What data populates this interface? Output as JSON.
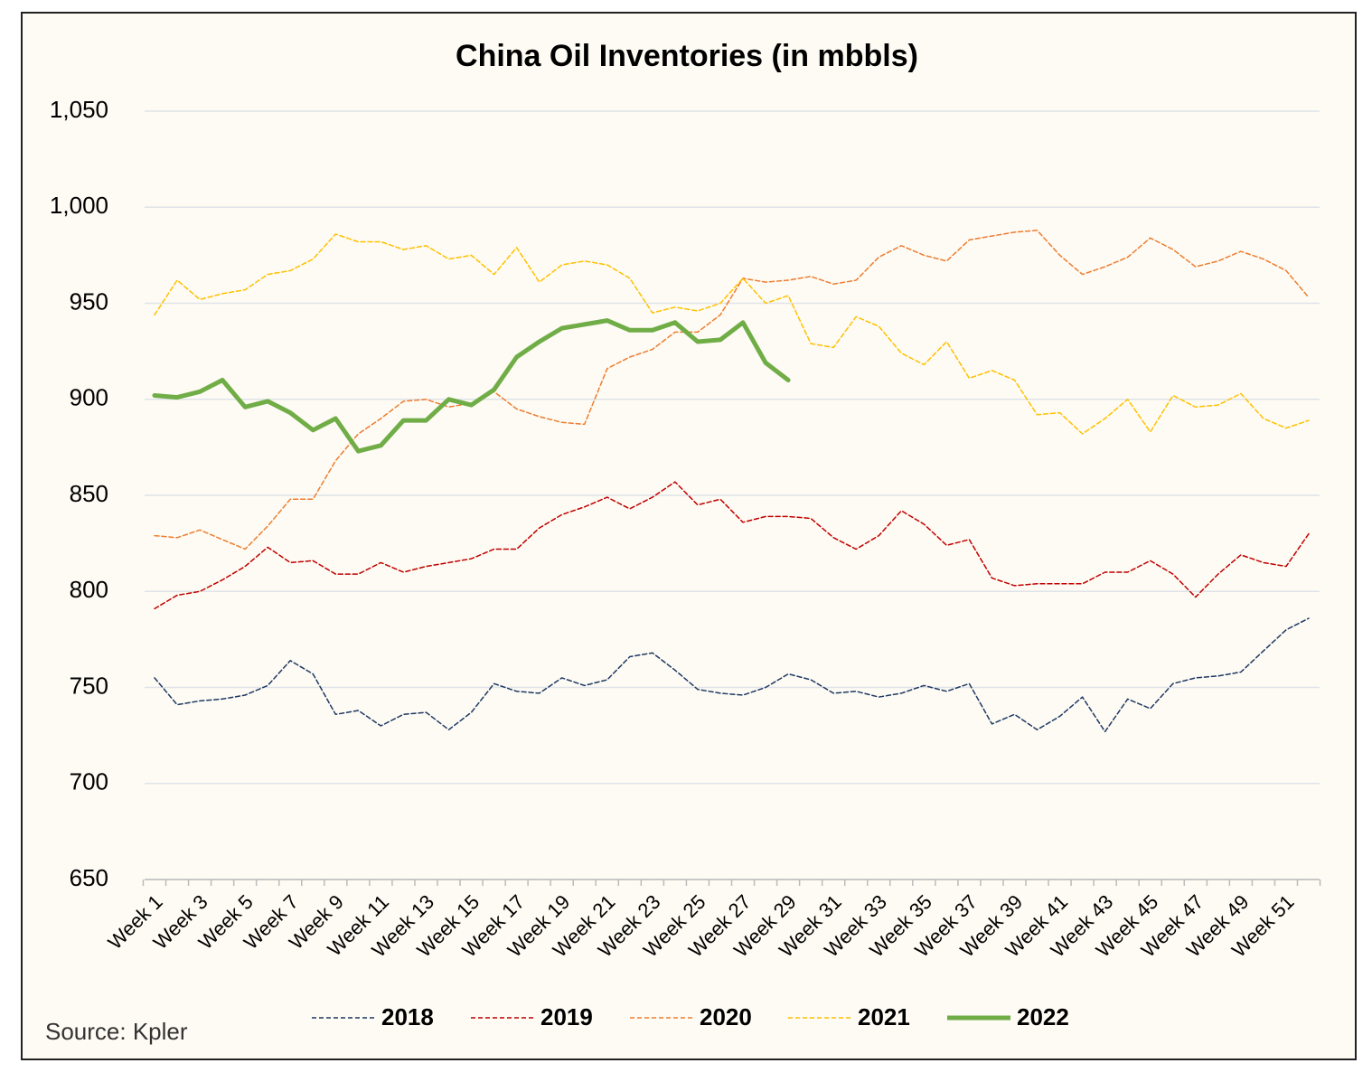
{
  "chart_data": {
    "type": "line",
    "title": "China Oil Inventories (in mbbls)",
    "source": "Source: Kpler",
    "categories": [
      "Week 1",
      null,
      "Week 3",
      null,
      "Week 5",
      null,
      "Week 7",
      null,
      "Week 9",
      null,
      "Week 11",
      null,
      "Week 13",
      null,
      "Week 15",
      null,
      "Week 17",
      null,
      "Week 19",
      null,
      "Week 21",
      null,
      "Week 23",
      null,
      "Week 25",
      null,
      "Week 27",
      null,
      "Week 29",
      null,
      "Week 31",
      null,
      "Week 33",
      null,
      "Week 35",
      null,
      "Week 37",
      null,
      "Week 39",
      null,
      "Week 41",
      null,
      "Week 43",
      null,
      "Week 45",
      null,
      "Week 47",
      null,
      "Week 49",
      null,
      "Week 51",
      null
    ],
    "ylim": [
      650,
      1050
    ],
    "yticks": [
      650,
      700,
      750,
      800,
      850,
      900,
      950,
      {
        "value": 1000,
        "label": "1,000"
      },
      {
        "value": 1050,
        "label": "1,050"
      }
    ],
    "grid": true,
    "legend": "bottom",
    "series": [
      {
        "name": "2018",
        "color": "#1f3864",
        "line_style": "dashed",
        "line_width": 1.5,
        "values": [
          755,
          741,
          743,
          744,
          746,
          751,
          764,
          757,
          736,
          738,
          730,
          736,
          737,
          728,
          737,
          752,
          748,
          747,
          755,
          751,
          754,
          766,
          768,
          759,
          749,
          747,
          746,
          750,
          757,
          754,
          747,
          748,
          745,
          747,
          751,
          748,
          752,
          731,
          736,
          728,
          735,
          745,
          727,
          744,
          739,
          752,
          755,
          756,
          758,
          769,
          780,
          786
        ]
      },
      {
        "name": "2019",
        "color": "#c00000",
        "line_style": "dashed",
        "line_width": 1.5,
        "values": [
          791,
          798,
          800,
          806,
          813,
          823,
          815,
          816,
          809,
          809,
          815,
          810,
          813,
          815,
          817,
          822,
          822,
          833,
          840,
          844,
          849,
          843,
          849,
          857,
          845,
          848,
          836,
          839,
          839,
          838,
          828,
          822,
          829,
          842,
          835,
          824,
          827,
          807,
          803,
          804,
          804,
          804,
          810,
          810,
          816,
          809,
          797,
          809,
          819,
          815,
          813,
          830
        ]
      },
      {
        "name": "2020",
        "color": "#ed7d31",
        "line_style": "dashed",
        "line_width": 1.5,
        "values": [
          829,
          828,
          832,
          827,
          822,
          834,
          848,
          848,
          868,
          882,
          890,
          899,
          900,
          896,
          898,
          904,
          895,
          891,
          888,
          887,
          916,
          922,
          926,
          935,
          935,
          944,
          963,
          961,
          962,
          964,
          960,
          962,
          974,
          980,
          975,
          972,
          983,
          985,
          987,
          988,
          975,
          965,
          969,
          974,
          984,
          978,
          969,
          972,
          977,
          973,
          967,
          953
        ]
      },
      {
        "name": "2021",
        "color": "#ffc000",
        "line_style": "dashed",
        "line_width": 1.5,
        "values": [
          944,
          962,
          952,
          955,
          957,
          965,
          967,
          973,
          986,
          982,
          982,
          978,
          980,
          973,
          975,
          965,
          979,
          961,
          970,
          972,
          970,
          963,
          945,
          948,
          946,
          950,
          963,
          950,
          954,
          929,
          927,
          943,
          938,
          924,
          918,
          930,
          911,
          915,
          910,
          892,
          893,
          882,
          890,
          900,
          883,
          902,
          896,
          897,
          903,
          890,
          885,
          889
        ]
      },
      {
        "name": "2022",
        "color": "#70ad47",
        "line_style": "solid",
        "line_width": 5,
        "values": [
          902,
          901,
          904,
          910,
          896,
          899,
          893,
          884,
          890,
          873,
          876,
          889,
          889,
          900,
          897,
          905,
          922,
          930,
          937,
          939,
          941,
          936,
          936,
          940,
          930,
          931,
          940,
          919,
          910,
          null,
          null,
          null,
          null,
          null,
          null,
          null,
          null,
          null,
          null,
          null,
          null,
          null,
          null,
          null,
          null,
          null,
          null,
          null,
          null,
          null,
          null,
          null
        ]
      }
    ]
  }
}
